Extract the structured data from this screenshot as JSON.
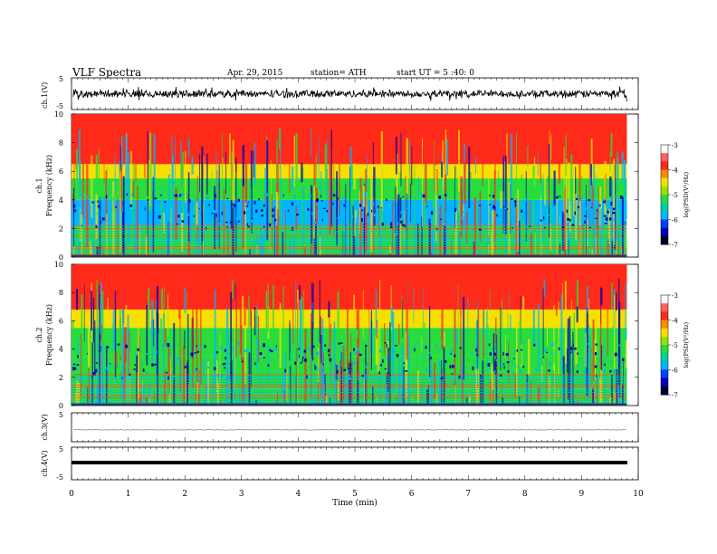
{
  "header": {
    "title": "VLF  Spectra",
    "date": "Apr. 29, 2015",
    "station": "station= ATH",
    "start": "start  UT =   5  :40: 0"
  },
  "colors": {
    "high": "#ff2a1a",
    "mid_high": "#f5e000",
    "mid": "#28dd3c",
    "mid_low": "#00b6ff",
    "low": "#0000b4",
    "lowest": "#000000"
  },
  "chart_data": [
    {
      "type": "line",
      "panel": "ch.1 waveform",
      "ylabel": "ch.1(V)",
      "ylim": [
        -5,
        5
      ],
      "yticks": [
        "5",
        "-5"
      ],
      "description_series": "noisy waveform centered near 0 V, amplitude about ±1.5 V"
    },
    {
      "type": "heatmap",
      "panel": "ch.1 spectrogram",
      "ylabel": "ch.1\nFrequency (kHz)",
      "ylabel_lines": [
        "ch.1",
        "Frequency  (kHz)"
      ],
      "ylim": [
        0,
        10
      ],
      "yticks": [
        "0",
        "2",
        "4",
        "6",
        "8",
        "10"
      ],
      "colorbar": {
        "label": "log(PSD(V²/Hz)",
        "range": [
          -7,
          -3
        ],
        "ticks": [
          "-3",
          "-4",
          "-5",
          "-6",
          "-7"
        ]
      },
      "bands_khz": [
        {
          "from": 0,
          "to": 1.2,
          "level": "mid"
        },
        {
          "from": 1.2,
          "to": 2.2,
          "level": "mid"
        },
        {
          "from": 2.2,
          "to": 4.0,
          "level": "mid_low"
        },
        {
          "from": 4.0,
          "to": 5.5,
          "level": "mid"
        },
        {
          "from": 5.5,
          "to": 6.5,
          "level": "mid_high"
        },
        {
          "from": 6.5,
          "to": 10,
          "level": "high"
        }
      ]
    },
    {
      "type": "heatmap",
      "panel": "ch.2 spectrogram",
      "ylabel_lines": [
        "ch.2",
        "Frequency  (kHz)"
      ],
      "ylim": [
        0,
        10
      ],
      "yticks": [
        "0",
        "2",
        "4",
        "6",
        "8",
        "10"
      ],
      "colorbar": {
        "label": "log(PSD(V²/Hz)",
        "range": [
          -7,
          -3
        ],
        "ticks": [
          "-3",
          "-4",
          "-5",
          "-6",
          "-7"
        ]
      },
      "bands_khz": [
        {
          "from": 0,
          "to": 1.2,
          "level": "mid"
        },
        {
          "from": 1.2,
          "to": 3.5,
          "level": "mid"
        },
        {
          "from": 3.5,
          "to": 5.5,
          "level": "mid"
        },
        {
          "from": 5.5,
          "to": 6.8,
          "level": "mid_high"
        },
        {
          "from": 6.8,
          "to": 10,
          "level": "high"
        }
      ]
    },
    {
      "type": "line",
      "panel": "ch.3 waveform",
      "ylabel": "ch.3(V)",
      "ylim": [
        -5,
        5
      ],
      "yticks": [
        "5"
      ],
      "description_series": "near-flat trace around -1 V"
    },
    {
      "type": "line",
      "panel": "ch.4 waveform",
      "ylabel": "ch.4(V)",
      "ylim": [
        -5,
        5
      ],
      "yticks": [
        "5",
        "-5"
      ],
      "description_series": "thick flat trace near 0 V"
    }
  ],
  "xaxis": {
    "label": "Time  (min)",
    "range": [
      0,
      10
    ],
    "ticks": [
      "0",
      "1",
      "2",
      "3",
      "4",
      "5",
      "6",
      "7",
      "8",
      "9",
      "10"
    ],
    "data_end": 9.8
  }
}
